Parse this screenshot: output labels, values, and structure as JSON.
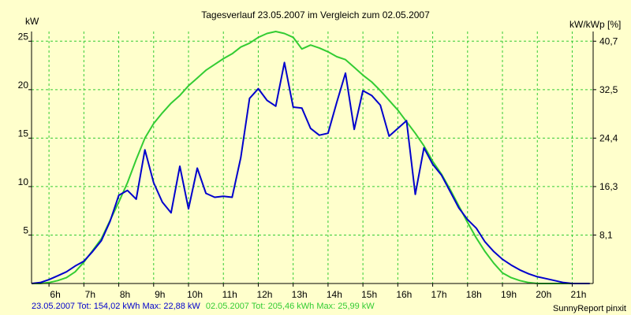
{
  "chart_data": {
    "type": "line",
    "title": "Tagesverlauf 23.05.2007 im Vergleich zum 02.05.2007",
    "ylabel_left": "kW",
    "ylabel_right": "kW/kWp [%]",
    "x_ticks": [
      "6h",
      "7h",
      "8h",
      "9h",
      "10h",
      "11h",
      "12h",
      "13h",
      "14h",
      "15h",
      "16h",
      "17h",
      "18h",
      "19h",
      "20h",
      "21h"
    ],
    "xlim": [
      5.5,
      21.6
    ],
    "ylim": [
      0,
      26
    ],
    "y_ticks_left": [
      "5",
      "10",
      "15",
      "20",
      "25"
    ],
    "y_ticks_right": [
      "8,1",
      "16,3",
      "24,4",
      "32,5",
      "40,7"
    ],
    "grid": true,
    "series": [
      {
        "name": "23.05.2007",
        "color": "#0000cc",
        "x": [
          5.5,
          5.75,
          6.0,
          6.25,
          6.5,
          6.75,
          7.0,
          7.25,
          7.5,
          7.75,
          8.0,
          8.25,
          8.5,
          8.75,
          9.0,
          9.25,
          9.5,
          9.75,
          10.0,
          10.25,
          10.5,
          10.75,
          11.0,
          11.25,
          11.5,
          11.75,
          12.0,
          12.25,
          12.5,
          12.75,
          13.0,
          13.25,
          13.5,
          13.75,
          14.0,
          14.25,
          14.5,
          14.75,
          15.0,
          15.25,
          15.5,
          15.75,
          16.0,
          16.25,
          16.5,
          16.75,
          17.0,
          17.25,
          17.5,
          17.75,
          18.0,
          18.25,
          18.5,
          18.75,
          19.0,
          19.25,
          19.5,
          19.75,
          20.0,
          20.25,
          20.5,
          20.75,
          21.0,
          21.25,
          21.5
        ],
        "y": [
          0,
          0.1,
          0.4,
          0.8,
          1.2,
          1.8,
          2.3,
          3.3,
          4.4,
          6.4,
          9.1,
          9.6,
          8.7,
          13.8,
          10.4,
          8.4,
          7.3,
          12.1,
          7.7,
          11.9,
          9.3,
          8.9,
          9.0,
          8.9,
          13.0,
          19.1,
          20.1,
          18.9,
          18.3,
          22.8,
          18.2,
          18.1,
          16.0,
          15.3,
          15.5,
          18.7,
          21.7,
          15.9,
          19.9,
          19.4,
          18.4,
          15.2,
          16.0,
          16.8,
          9.2,
          14.0,
          12.3,
          11.2,
          9.5,
          7.8,
          6.6,
          5.7,
          4.3,
          3.3,
          2.5,
          1.9,
          1.4,
          1.0,
          0.7,
          0.5,
          0.3,
          0.1,
          0,
          0,
          0
        ]
      },
      {
        "name": "02.05.2007",
        "color": "#33cc33",
        "x": [
          5.5,
          5.75,
          6.0,
          6.25,
          6.5,
          6.75,
          7.0,
          7.25,
          7.5,
          7.75,
          8.0,
          8.25,
          8.5,
          8.75,
          9.0,
          9.25,
          9.5,
          9.75,
          10.0,
          10.25,
          10.5,
          10.75,
          11.0,
          11.25,
          11.5,
          11.75,
          12.0,
          12.25,
          12.5,
          12.75,
          13.0,
          13.25,
          13.5,
          13.75,
          14.0,
          14.25,
          14.5,
          14.75,
          15.0,
          15.25,
          15.5,
          15.75,
          16.0,
          16.25,
          16.5,
          16.75,
          17.0,
          17.25,
          17.5,
          17.75,
          18.0,
          18.25,
          18.5,
          18.75,
          19.0,
          19.25,
          19.5,
          19.75,
          20.0,
          20.25,
          20.5,
          20.75,
          21.0,
          21.25,
          21.5
        ],
        "y": [
          0,
          0,
          0.1,
          0.3,
          0.6,
          1.2,
          2.2,
          3.4,
          4.6,
          6.5,
          8.4,
          10.4,
          12.8,
          15.0,
          16.5,
          17.6,
          18.6,
          19.4,
          20.4,
          21.2,
          22.0,
          22.6,
          23.2,
          23.7,
          24.4,
          24.8,
          25.4,
          25.8,
          26.0,
          25.8,
          25.4,
          24.2,
          24.6,
          24.3,
          23.9,
          23.4,
          23.1,
          22.3,
          21.5,
          20.8,
          19.9,
          18.9,
          17.9,
          16.7,
          15.5,
          14.2,
          12.6,
          11.3,
          9.7,
          8.0,
          6.3,
          4.7,
          3.3,
          2.1,
          1.1,
          0.6,
          0.3,
          0.1,
          0,
          0,
          0,
          0,
          0,
          0,
          0
        ]
      }
    ],
    "footer": {
      "left_blue": "23.05.2007 Tot: 154,02 kWh Max: 22,88 kW",
      "left_green": "02.05.2007 Tot: 205,46 kWh Max: 25,99 kW",
      "right": "SunnyReport pinxit"
    }
  }
}
